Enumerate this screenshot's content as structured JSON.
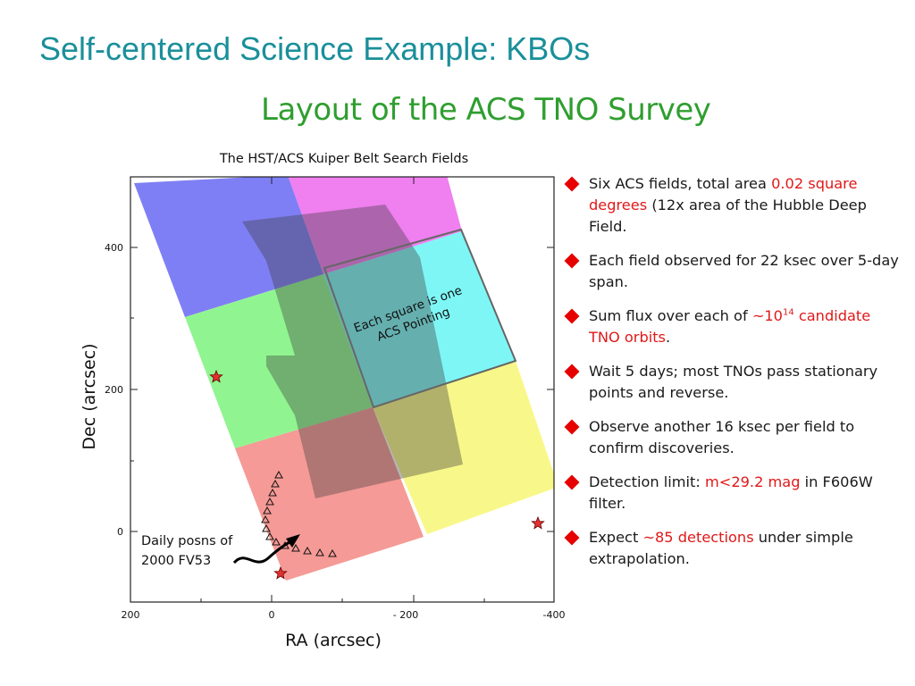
{
  "slide": {
    "title": "Self-centered Science Example: KBOs",
    "subtitle": "Layout of the ACS TNO Survey"
  },
  "figure": {
    "title": "The HST/ACS Kuiper Belt Search Fields",
    "xlabel": "RA (arcsec)",
    "ylabel": "Dec (arcsec)",
    "x_ticks": [
      "200",
      "0",
      "- 200",
      "-400"
    ],
    "y_ticks": [
      "400",
      "200",
      "0"
    ],
    "annotation_pointing": [
      "Each square is one",
      "ACS Pointing"
    ],
    "annotation_track": [
      "Daily posns of",
      "2000 FV53"
    ],
    "colors": {
      "blue": "#7f7ff5",
      "magenta": "#f07ff0",
      "green": "#90f590",
      "cyan": "#7ff6f6",
      "red": "#f59a96",
      "yellow": "#f8f88a",
      "overlap": "#3c3c3c",
      "star": "#e53030"
    }
  },
  "bullets": [
    {
      "parts": [
        {
          "t": "Six ACS fields, total area "
        },
        {
          "t": "0.02 square degrees",
          "hl": true
        },
        {
          "t": " (12x area of the Hubble Deep Field."
        }
      ]
    },
    {
      "parts": [
        {
          "t": "Each field observed for 22 ksec over 5-day span."
        }
      ]
    },
    {
      "parts": [
        {
          "t": "Sum flux over each of "
        },
        {
          "t": "~10",
          "hl": true
        },
        {
          "t": "14",
          "hl": true,
          "sup": true
        },
        {
          "t": " candidate TNO orbits",
          "hl": true
        },
        {
          "t": "."
        }
      ]
    },
    {
      "parts": [
        {
          "t": "Wait 5 days; most TNOs pass stationary points and reverse."
        }
      ]
    },
    {
      "parts": [
        {
          "t": "Observe another 16 ksec per field to confirm discoveries."
        }
      ]
    },
    {
      "parts": [
        {
          "t": "Detection limit: "
        },
        {
          "t": "m<29.2 mag",
          "hl": true
        },
        {
          "t": " in F606W filter."
        }
      ]
    },
    {
      "parts": [
        {
          "t": "Expect "
        },
        {
          "t": "~85 detections",
          "hl": true
        },
        {
          "t": " under simple extrapolation."
        }
      ]
    }
  ],
  "bullet_color": "#e60000"
}
